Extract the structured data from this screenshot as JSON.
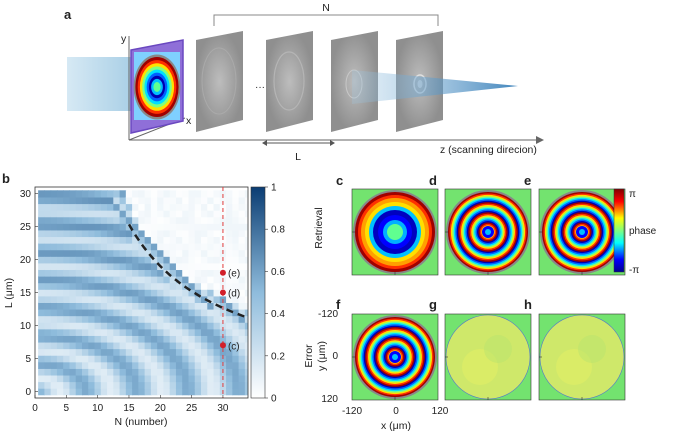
{
  "panel_labels": {
    "a": "a",
    "b": "b",
    "c": "c",
    "d": "d",
    "e": "e",
    "f": "f",
    "g": "g",
    "h": "h"
  },
  "panel_a": {
    "n_label": "N",
    "y_axis": "y",
    "x_axis": "x",
    "ellipsis": "···",
    "l_label": "L",
    "z_axis": "z (scanning direcion)"
  },
  "panel_b": {
    "xlabel": "N (number)",
    "ylabel": "L (μm)",
    "colorbar_ticks": [
      "1",
      "0.8",
      "0.6",
      "0.4",
      "0.2",
      "0"
    ],
    "points": [
      {
        "label": "(e)",
        "n": 30,
        "l": 18
      },
      {
        "label": "(d)",
        "n": 30,
        "l": 15
      },
      {
        "label": "(c)",
        "n": 30,
        "l": 7
      }
    ]
  },
  "retrieval_label": "Retrieval",
  "error_label": "Error",
  "phase_colorbar": {
    "top": "π",
    "middle": "phase",
    "bottom": "-π"
  },
  "panel_f_axes": {
    "xlabel": "x (μm)",
    "ylabel": "y (μm)",
    "ticks": [
      "-120",
      "0",
      "120"
    ]
  },
  "chart_data": {
    "type": "heatmap",
    "xlabel": "N (number)",
    "ylabel": "L (μm)",
    "x_ticks": [
      0,
      5,
      10,
      15,
      20,
      25,
      30
    ],
    "y_ticks": [
      0,
      5,
      10,
      15,
      20,
      25,
      30
    ],
    "xlim": [
      0,
      34
    ],
    "ylim": [
      -1,
      31
    ],
    "colorbar_range": [
      0,
      1
    ],
    "threshold_curve_NL_product": 380,
    "marker_line_N": 30
  }
}
